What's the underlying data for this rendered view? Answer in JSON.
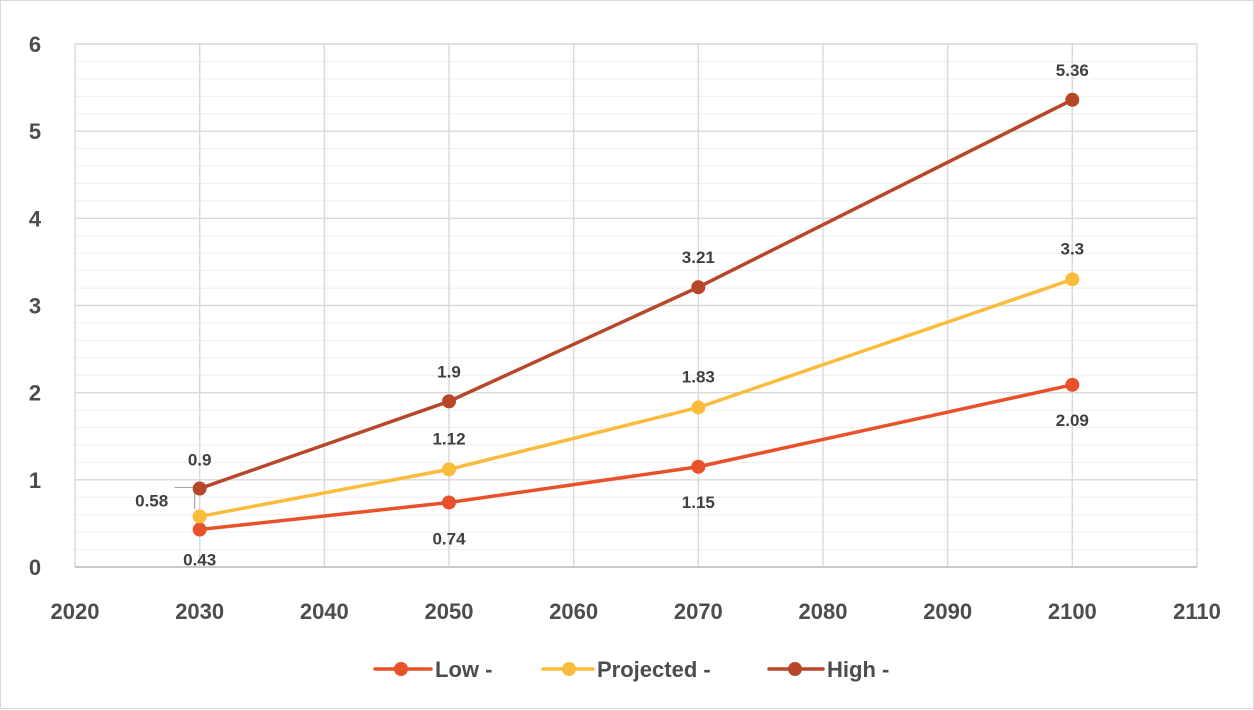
{
  "chart_data": {
    "type": "line",
    "title": "",
    "xlabel": "",
    "ylabel": "",
    "xlim": [
      2020,
      2110
    ],
    "ylim": [
      0,
      6
    ],
    "x_ticks": [
      2020,
      2030,
      2040,
      2050,
      2060,
      2070,
      2080,
      2090,
      2100,
      2110
    ],
    "y_ticks": [
      0,
      1,
      2,
      3,
      4,
      5,
      6
    ],
    "x_tick_labels": [
      "2020",
      "2030",
      "2040",
      "2050",
      "2060",
      "2070",
      "2080",
      "2090",
      "2100",
      "2110"
    ],
    "y_tick_labels": [
      "0",
      "1",
      "2",
      "3",
      "4",
      "5",
      "6"
    ],
    "grid": true,
    "legend_position": "bottom",
    "series": [
      {
        "name": "Low -",
        "color": "#e8512a",
        "points": [
          {
            "x": 2030,
            "y": 0.43,
            "label": "0.43"
          },
          {
            "x": 2050,
            "y": 0.74,
            "label": "0.74"
          },
          {
            "x": 2070,
            "y": 1.15,
            "label": "1.15"
          },
          {
            "x": 2100,
            "y": 2.09,
            "label": "2.09"
          }
        ]
      },
      {
        "name": "Projected -",
        "color": "#fbbc3c",
        "points": [
          {
            "x": 2030,
            "y": 0.58,
            "label": "0.58"
          },
          {
            "x": 2050,
            "y": 1.12,
            "label": "1.12"
          },
          {
            "x": 2070,
            "y": 1.83,
            "label": "1.83"
          },
          {
            "x": 2100,
            "y": 3.3,
            "label": "3.3"
          }
        ]
      },
      {
        "name": "High -",
        "color": "#b8472a",
        "points": [
          {
            "x": 2030,
            "y": 0.9,
            "label": "0.9"
          },
          {
            "x": 2050,
            "y": 1.9,
            "label": "1.9"
          },
          {
            "x": 2070,
            "y": 3.21,
            "label": "3.21"
          },
          {
            "x": 2100,
            "y": 5.36,
            "label": "5.36"
          }
        ]
      }
    ]
  }
}
